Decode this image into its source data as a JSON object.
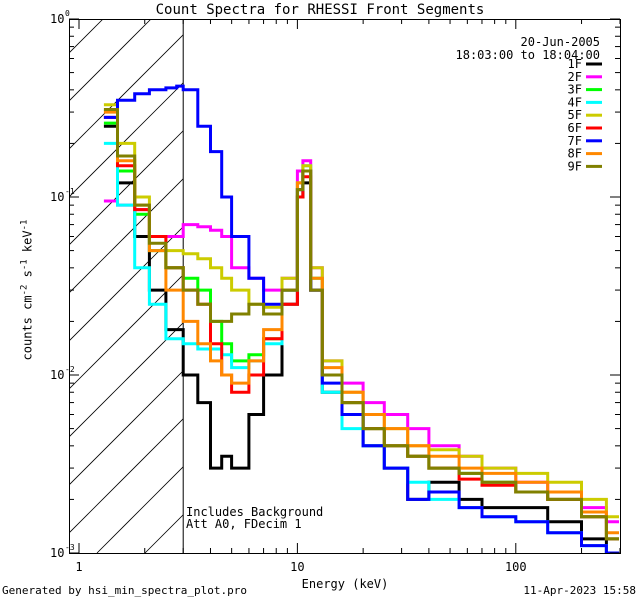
{
  "chart_data": {
    "type": "line",
    "title": "Count Spectra for RHESSI Front Segments",
    "xlabel": "Energy (keV)",
    "ylabel_parts": [
      "counts cm",
      "-2",
      " s",
      "-1",
      " keV",
      "-1"
    ],
    "x_scale": "log",
    "y_scale": "log",
    "xlim": [
      0.9,
      300
    ],
    "ylim": [
      0.001,
      1
    ],
    "x_ticks": [
      {
        "value": 1,
        "label": "1"
      },
      {
        "value": 10,
        "label": "10"
      },
      {
        "value": 100,
        "label": "100"
      }
    ],
    "y_ticks": [
      {
        "value": 1,
        "mant": "10",
        "exp": "0"
      },
      {
        "value": 0.1,
        "mant": "10",
        "exp": "-1"
      },
      {
        "value": 0.01,
        "mant": "10",
        "exp": "-2"
      },
      {
        "value": 0.001,
        "mant": "10",
        "exp": "-3"
      }
    ],
    "shaded_region_max_energy": 3,
    "date": "20-Jun-2005",
    "time_range": "18:03:00 to 18:04:00",
    "annotations": [
      "Includes Background",
      "Att A0, FDecim 1"
    ],
    "series": [
      {
        "name": "1F",
        "color": "#000000",
        "segments": [
          [
            1.3,
            0.25
          ],
          [
            1.5,
            0.12
          ],
          [
            1.8,
            0.06
          ],
          [
            2.1,
            0.03
          ],
          [
            2.5,
            0.018
          ],
          [
            3.0,
            0.01
          ],
          [
            3.5,
            0.007
          ],
          [
            4.0,
            0.003
          ],
          [
            4.5,
            0.0035
          ],
          [
            5.0,
            0.003
          ],
          [
            6.0,
            0.006
          ],
          [
            7.0,
            0.01
          ],
          [
            8.5,
            0.025
          ],
          [
            10.0,
            0.1
          ],
          [
            10.6,
            0.12
          ],
          [
            11.5,
            0.03
          ],
          [
            13.0,
            0.008
          ],
          [
            16.0,
            0.006
          ],
          [
            20.0,
            0.004
          ],
          [
            25.0,
            0.003
          ],
          [
            32.0,
            0.002
          ],
          [
            40.0,
            0.0025
          ],
          [
            55.0,
            0.002
          ],
          [
            70.0,
            0.0018
          ],
          [
            100.0,
            0.0018
          ],
          [
            140.0,
            0.0015
          ],
          [
            200.0,
            0.0012
          ],
          [
            260.0,
            0.001
          ]
        ]
      },
      {
        "name": "2F",
        "color": "#ff00ff",
        "segments": [
          [
            1.3,
            0.095
          ],
          [
            1.5,
            0.09
          ],
          [
            1.8,
            0.085
          ],
          [
            2.1,
            0.06
          ],
          [
            2.5,
            0.06
          ],
          [
            3.0,
            0.07
          ],
          [
            3.5,
            0.068
          ],
          [
            4.0,
            0.065
          ],
          [
            4.5,
            0.06
          ],
          [
            5.0,
            0.04
          ],
          [
            6.0,
            0.035
          ],
          [
            7.0,
            0.03
          ],
          [
            8.5,
            0.035
          ],
          [
            10.0,
            0.14
          ],
          [
            10.6,
            0.16
          ],
          [
            11.5,
            0.04
          ],
          [
            13.0,
            0.012
          ],
          [
            16.0,
            0.009
          ],
          [
            20.0,
            0.007
          ],
          [
            25.0,
            0.006
          ],
          [
            32.0,
            0.005
          ],
          [
            40.0,
            0.004
          ],
          [
            55.0,
            0.0035
          ],
          [
            70.0,
            0.003
          ],
          [
            100.0,
            0.0025
          ],
          [
            140.0,
            0.0022
          ],
          [
            200.0,
            0.0018
          ],
          [
            260.0,
            0.0015
          ]
        ]
      },
      {
        "name": "3F",
        "color": "#00ff00",
        "segments": [
          [
            1.3,
            0.26
          ],
          [
            1.5,
            0.14
          ],
          [
            1.8,
            0.08
          ],
          [
            2.1,
            0.05
          ],
          [
            2.5,
            0.04
          ],
          [
            3.0,
            0.035
          ],
          [
            3.5,
            0.03
          ],
          [
            4.0,
            0.02
          ],
          [
            4.5,
            0.015
          ],
          [
            5.0,
            0.012
          ],
          [
            6.0,
            0.013
          ],
          [
            7.0,
            0.016
          ],
          [
            8.5,
            0.03
          ],
          [
            10.0,
            0.11
          ],
          [
            10.6,
            0.14
          ],
          [
            11.5,
            0.035
          ],
          [
            13.0,
            0.01
          ],
          [
            16.0,
            0.007
          ],
          [
            20.0,
            0.005
          ],
          [
            25.0,
            0.004
          ],
          [
            32.0,
            0.0035
          ],
          [
            40.0,
            0.003
          ],
          [
            55.0,
            0.0028
          ],
          [
            70.0,
            0.0025
          ],
          [
            100.0,
            0.0022
          ],
          [
            140.0,
            0.002
          ],
          [
            200.0,
            0.0016
          ],
          [
            260.0,
            0.0012
          ]
        ]
      },
      {
        "name": "4F",
        "color": "#00ffff",
        "segments": [
          [
            1.3,
            0.2
          ],
          [
            1.5,
            0.09
          ],
          [
            1.8,
            0.04
          ],
          [
            2.1,
            0.025
          ],
          [
            2.5,
            0.016
          ],
          [
            3.0,
            0.015
          ],
          [
            3.5,
            0.014
          ],
          [
            4.0,
            0.014
          ],
          [
            4.5,
            0.013
          ],
          [
            5.0,
            0.011
          ],
          [
            6.0,
            0.012
          ],
          [
            7.0,
            0.015
          ],
          [
            8.5,
            0.03
          ],
          [
            10.0,
            0.12
          ],
          [
            10.6,
            0.15
          ],
          [
            11.5,
            0.03
          ],
          [
            13.0,
            0.008
          ],
          [
            16.0,
            0.005
          ],
          [
            20.0,
            0.004
          ],
          [
            25.0,
            0.003
          ],
          [
            32.0,
            0.0025
          ],
          [
            40.0,
            0.002
          ],
          [
            55.0,
            0.0018
          ],
          [
            70.0,
            0.0016
          ],
          [
            100.0,
            0.0015
          ],
          [
            140.0,
            0.0013
          ],
          [
            200.0,
            0.0011
          ],
          [
            260.0,
            0.001
          ]
        ]
      },
      {
        "name": "5F",
        "color": "#cccc00",
        "segments": [
          [
            1.3,
            0.33
          ],
          [
            1.5,
            0.2
          ],
          [
            1.8,
            0.1
          ],
          [
            2.1,
            0.06
          ],
          [
            2.5,
            0.05
          ],
          [
            3.0,
            0.048
          ],
          [
            3.5,
            0.045
          ],
          [
            4.0,
            0.04
          ],
          [
            4.5,
            0.035
          ],
          [
            5.0,
            0.03
          ],
          [
            6.0,
            0.025
          ],
          [
            7.0,
            0.024
          ],
          [
            8.5,
            0.035
          ],
          [
            10.0,
            0.12
          ],
          [
            10.6,
            0.15
          ],
          [
            11.5,
            0.04
          ],
          [
            13.0,
            0.012
          ],
          [
            16.0,
            0.008
          ],
          [
            20.0,
            0.006
          ],
          [
            25.0,
            0.005
          ],
          [
            32.0,
            0.004
          ],
          [
            40.0,
            0.0038
          ],
          [
            55.0,
            0.0035
          ],
          [
            70.0,
            0.003
          ],
          [
            100.0,
            0.0028
          ],
          [
            140.0,
            0.0025
          ],
          [
            200.0,
            0.002
          ],
          [
            260.0,
            0.0016
          ]
        ]
      },
      {
        "name": "6F",
        "color": "#ff0000",
        "segments": [
          [
            1.3,
            0.28
          ],
          [
            1.5,
            0.15
          ],
          [
            1.8,
            0.085
          ],
          [
            2.1,
            0.06
          ],
          [
            2.5,
            0.04
          ],
          [
            3.0,
            0.03
          ],
          [
            3.5,
            0.025
          ],
          [
            4.0,
            0.015
          ],
          [
            4.5,
            0.01
          ],
          [
            5.0,
            0.008
          ],
          [
            6.0,
            0.01
          ],
          [
            7.0,
            0.016
          ],
          [
            8.5,
            0.025
          ],
          [
            10.0,
            0.1
          ],
          [
            10.6,
            0.13
          ],
          [
            11.5,
            0.03
          ],
          [
            13.0,
            0.01
          ],
          [
            16.0,
            0.007
          ],
          [
            20.0,
            0.005
          ],
          [
            25.0,
            0.004
          ],
          [
            32.0,
            0.0035
          ],
          [
            40.0,
            0.003
          ],
          [
            55.0,
            0.0026
          ],
          [
            70.0,
            0.0024
          ],
          [
            100.0,
            0.0022
          ],
          [
            140.0,
            0.002
          ],
          [
            200.0,
            0.0016
          ],
          [
            260.0,
            0.0012
          ]
        ]
      },
      {
        "name": "7F",
        "color": "#0000ff",
        "segments": [
          [
            1.3,
            0.28
          ],
          [
            1.5,
            0.35
          ],
          [
            1.8,
            0.38
          ],
          [
            2.1,
            0.4
          ],
          [
            2.5,
            0.41
          ],
          [
            2.8,
            0.42
          ],
          [
            3.0,
            0.4
          ],
          [
            3.5,
            0.25
          ],
          [
            4.0,
            0.18
          ],
          [
            4.5,
            0.1
          ],
          [
            5.0,
            0.06
          ],
          [
            6.0,
            0.035
          ],
          [
            7.0,
            0.025
          ],
          [
            8.5,
            0.03
          ],
          [
            10.0,
            0.11
          ],
          [
            10.6,
            0.14
          ],
          [
            11.5,
            0.03
          ],
          [
            13.0,
            0.009
          ],
          [
            16.0,
            0.006
          ],
          [
            20.0,
            0.004
          ],
          [
            25.0,
            0.003
          ],
          [
            32.0,
            0.002
          ],
          [
            40.0,
            0.0022
          ],
          [
            55.0,
            0.0018
          ],
          [
            70.0,
            0.0016
          ],
          [
            100.0,
            0.0015
          ],
          [
            140.0,
            0.0013
          ],
          [
            200.0,
            0.0011
          ],
          [
            260.0,
            0.001
          ]
        ]
      },
      {
        "name": "8F",
        "color": "#ff8800",
        "segments": [
          [
            1.3,
            0.3
          ],
          [
            1.5,
            0.16
          ],
          [
            1.8,
            0.09
          ],
          [
            2.1,
            0.05
          ],
          [
            2.5,
            0.03
          ],
          [
            3.0,
            0.02
          ],
          [
            3.5,
            0.015
          ],
          [
            4.0,
            0.012
          ],
          [
            4.5,
            0.01
          ],
          [
            5.0,
            0.009
          ],
          [
            6.0,
            0.012
          ],
          [
            7.0,
            0.018
          ],
          [
            8.5,
            0.03
          ],
          [
            10.0,
            0.12
          ],
          [
            10.6,
            0.14
          ],
          [
            11.5,
            0.035
          ],
          [
            13.0,
            0.011
          ],
          [
            16.0,
            0.008
          ],
          [
            20.0,
            0.006
          ],
          [
            25.0,
            0.005
          ],
          [
            32.0,
            0.004
          ],
          [
            40.0,
            0.0035
          ],
          [
            55.0,
            0.003
          ],
          [
            70.0,
            0.0028
          ],
          [
            100.0,
            0.0025
          ],
          [
            140.0,
            0.0022
          ],
          [
            200.0,
            0.0017
          ],
          [
            260.0,
            0.0013
          ]
        ]
      },
      {
        "name": "9F",
        "color": "#808000",
        "segments": [
          [
            1.3,
            0.31
          ],
          [
            1.5,
            0.17
          ],
          [
            1.8,
            0.09
          ],
          [
            2.1,
            0.055
          ],
          [
            2.5,
            0.04
          ],
          [
            3.0,
            0.03
          ],
          [
            3.5,
            0.025
          ],
          [
            4.0,
            0.02
          ],
          [
            4.5,
            0.02
          ],
          [
            5.0,
            0.022
          ],
          [
            6.0,
            0.025
          ],
          [
            7.0,
            0.022
          ],
          [
            8.5,
            0.03
          ],
          [
            10.0,
            0.11
          ],
          [
            10.6,
            0.14
          ],
          [
            11.5,
            0.03
          ],
          [
            13.0,
            0.01
          ],
          [
            16.0,
            0.007
          ],
          [
            20.0,
            0.005
          ],
          [
            25.0,
            0.004
          ],
          [
            32.0,
            0.0035
          ],
          [
            40.0,
            0.003
          ],
          [
            55.0,
            0.0028
          ],
          [
            70.0,
            0.0025
          ],
          [
            100.0,
            0.0022
          ],
          [
            140.0,
            0.002
          ],
          [
            200.0,
            0.0016
          ],
          [
            260.0,
            0.0012
          ]
        ]
      }
    ]
  },
  "footer": {
    "left": "Generated by hsi_min_spectra_plot.pro",
    "right": "11-Apr-2023 15:58"
  }
}
